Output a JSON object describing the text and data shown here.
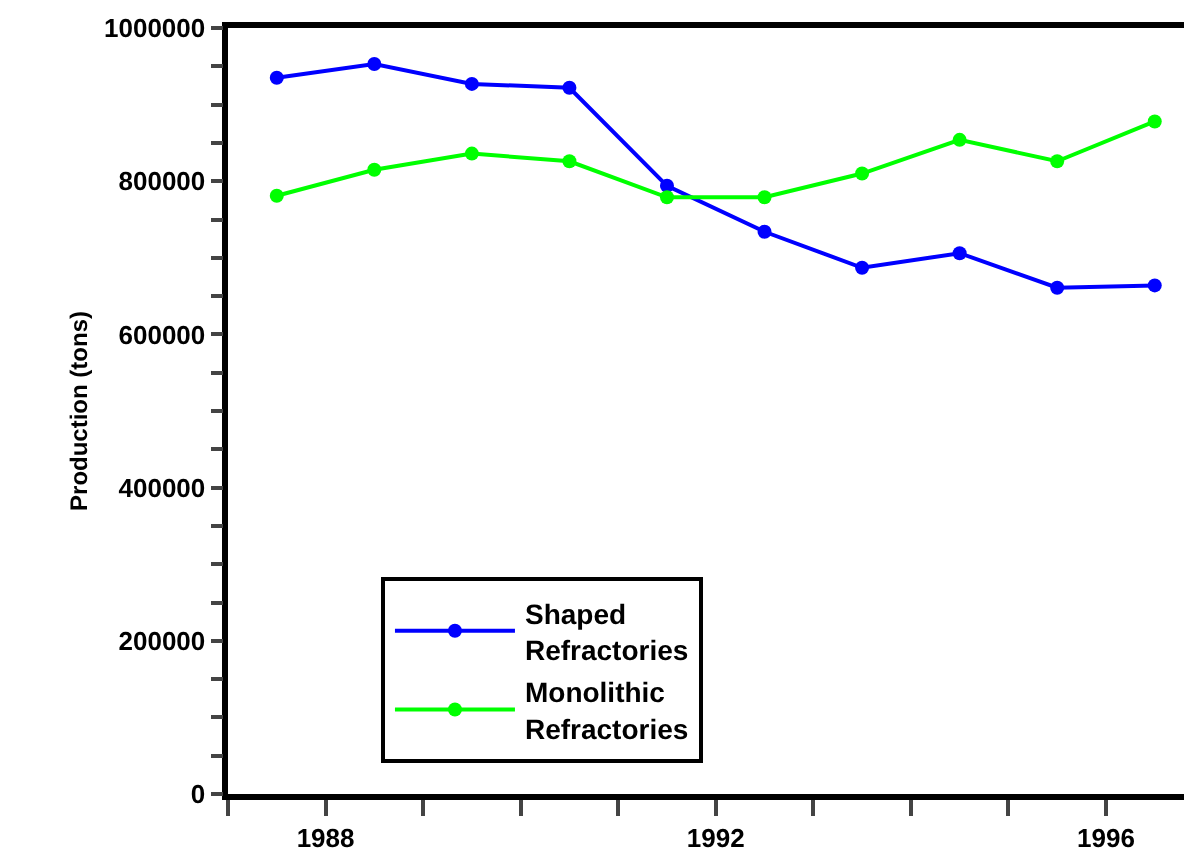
{
  "chart_data": {
    "type": "line",
    "ylabel": "Production (tons)",
    "x": [
      1987.5,
      1988.5,
      1989.5,
      1990.5,
      1991.5,
      1992.5,
      1993.5,
      1994.5,
      1995.5,
      1996.5
    ],
    "series": [
      {
        "name": "Shaped Refractories",
        "color": "#0000ff",
        "values": [
          935000,
          953000,
          927000,
          922000,
          794000,
          734000,
          687000,
          706000,
          661000,
          664000
        ]
      },
      {
        "name": "Monolithic Refractories",
        "color": "#00ff00",
        "values": [
          781000,
          815000,
          836000,
          826000,
          779000,
          779000,
          810000,
          854000,
          826000,
          878000
        ]
      }
    ],
    "xlim": [
      1987,
      1996.8
    ],
    "xticks": [
      {
        "value": 1987,
        "label": null
      },
      1988,
      {
        "value": 1989,
        "label": null
      },
      {
        "value": 1990,
        "label": null
      },
      {
        "value": 1991,
        "label": null
      },
      1992,
      {
        "value": 1993,
        "label": null
      },
      {
        "value": 1994,
        "label": null
      },
      {
        "value": 1995,
        "label": null
      },
      1996
    ],
    "ylim": [
      0,
      1000000
    ],
    "yticks": [
      0,
      {
        "value": 50000,
        "label": null
      },
      {
        "value": 100000,
        "label": null
      },
      {
        "value": 150000,
        "label": null
      },
      200000,
      {
        "value": 250000,
        "label": null
      },
      {
        "value": 300000,
        "label": null
      },
      {
        "value": 350000,
        "label": null
      },
      400000,
      {
        "value": 450000,
        "label": null
      },
      {
        "value": 500000,
        "label": null
      },
      {
        "value": 550000,
        "label": null
      },
      600000,
      {
        "value": 650000,
        "label": null
      },
      {
        "value": 700000,
        "label": null
      },
      {
        "value": 750000,
        "label": null
      },
      800000,
      {
        "value": 850000,
        "label": null
      },
      {
        "value": 900000,
        "label": null
      },
      {
        "value": 950000,
        "label": null
      },
      1000000
    ],
    "legend": "bottom left",
    "marker": "circle",
    "line_style": "solid"
  }
}
